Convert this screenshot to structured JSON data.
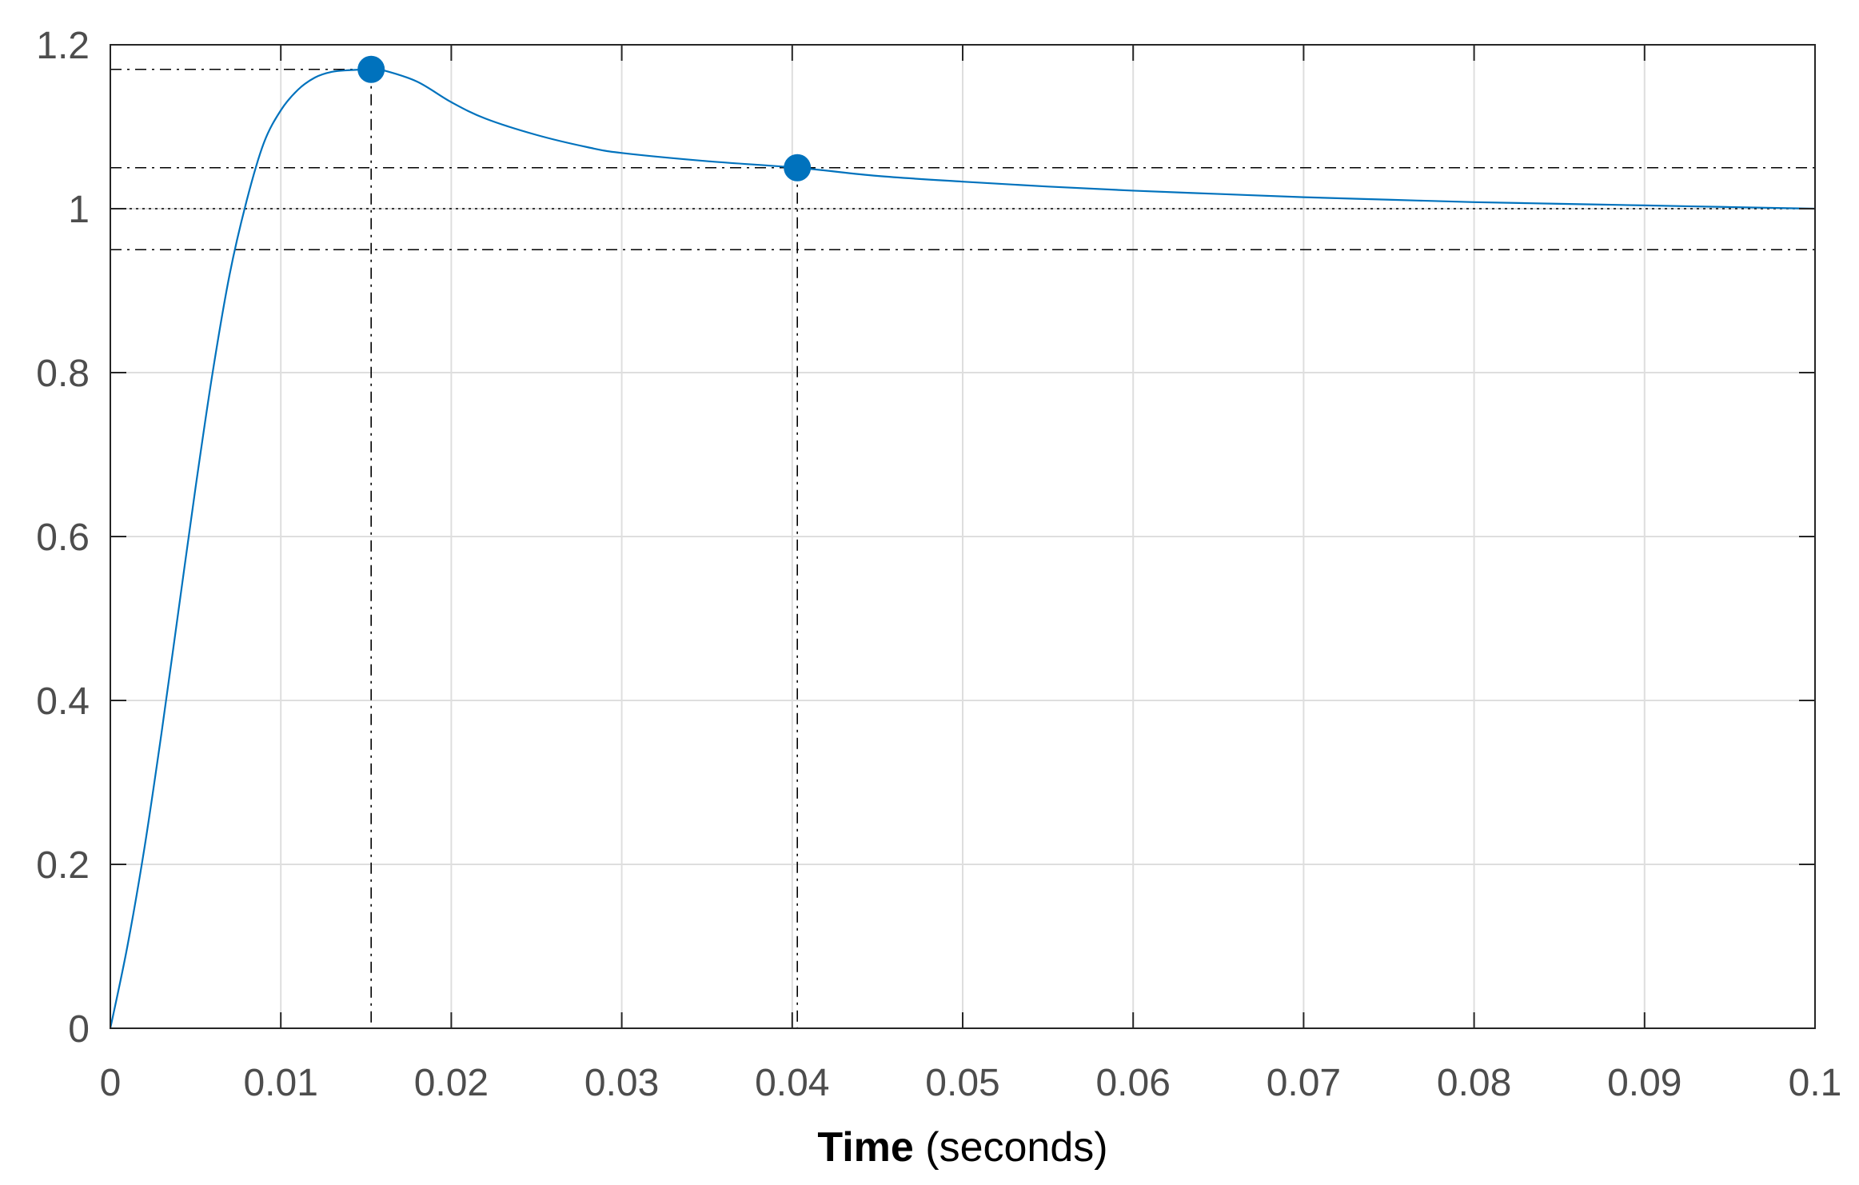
{
  "chart_data": {
    "type": "line",
    "xlabel_bold": "Time",
    "xlabel_rest": " (seconds)",
    "ylabel": "",
    "title": "",
    "xlim": [
      0,
      0.1
    ],
    "ylim": [
      0,
      1.2
    ],
    "grid": true,
    "x_ticks": [
      0,
      0.01,
      0.02,
      0.03,
      0.04,
      0.05,
      0.06,
      0.07,
      0.08,
      0.09,
      0.1
    ],
    "x_tick_labels": [
      "0",
      "0.01",
      "0.02",
      "0.03",
      "0.04",
      "0.05",
      "0.06",
      "0.07",
      "0.08",
      "0.09",
      "0.1"
    ],
    "y_ticks": [
      0,
      0.2,
      0.4,
      0.6,
      0.8,
      1,
      1.2
    ],
    "y_tick_labels": [
      "0",
      "0.2",
      "0.4",
      "0.6",
      "0.8",
      "1",
      "1.2"
    ],
    "line_color": "#0072BD",
    "series": [
      {
        "x": [
          0,
          0.001,
          0.002,
          0.003,
          0.004,
          0.005,
          0.006,
          0.007,
          0.008,
          0.009,
          0.01,
          0.011,
          0.012,
          0.013,
          0.014,
          0.0153,
          0.016,
          0.018,
          0.02,
          0.022,
          0.025,
          0.028,
          0.03,
          0.035,
          0.0403,
          0.045,
          0.05,
          0.055,
          0.06,
          0.065,
          0.07,
          0.075,
          0.08,
          0.085,
          0.09,
          0.095,
          0.1
        ],
        "y": [
          0,
          0.1,
          0.22,
          0.36,
          0.51,
          0.66,
          0.8,
          0.92,
          1.01,
          1.08,
          1.12,
          1.145,
          1.16,
          1.167,
          1.169,
          1.17,
          1.169,
          1.155,
          1.13,
          1.11,
          1.09,
          1.075,
          1.068,
          1.058,
          1.05,
          1.04,
          1.033,
          1.027,
          1.022,
          1.018,
          1.014,
          1.011,
          1.008,
          1.006,
          1.004,
          1.002,
          1.0
        ]
      }
    ],
    "markers": [
      {
        "x": 0.0153,
        "y": 1.17
      },
      {
        "x": 0.0403,
        "y": 1.05
      }
    ],
    "reference_lines": {
      "steady_state": 1.0,
      "settling_band": [
        0.95,
        1.05
      ],
      "peak": 1.17
    }
  }
}
